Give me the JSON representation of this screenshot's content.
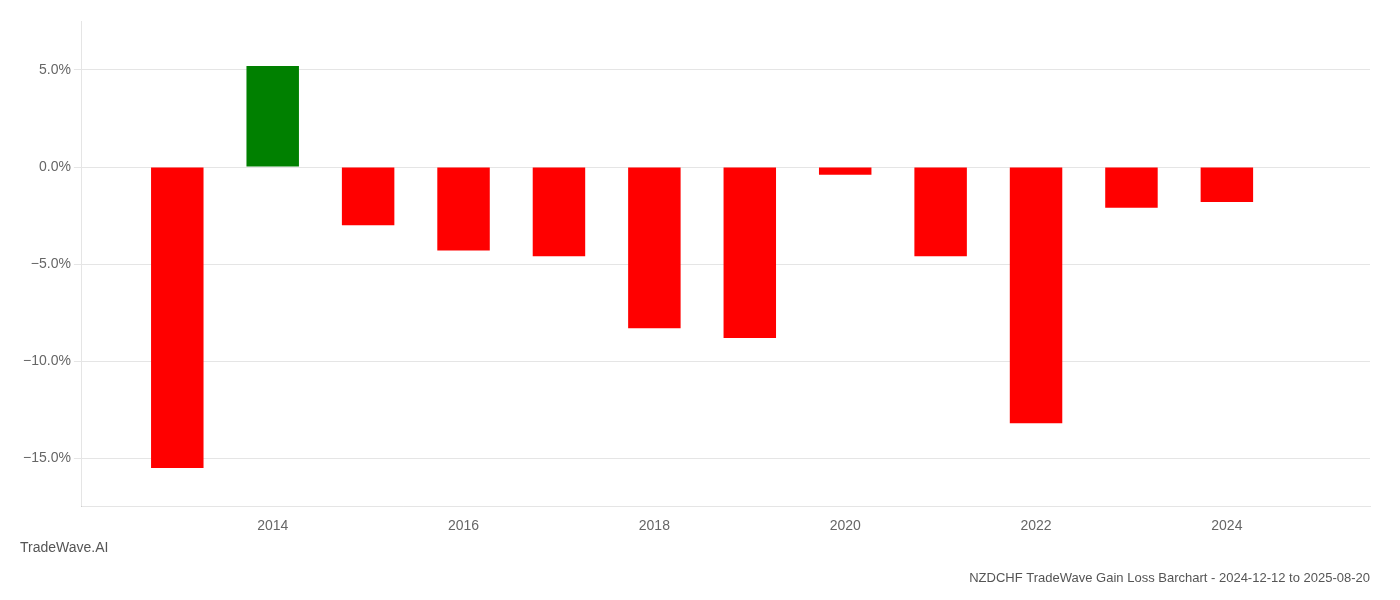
{
  "chart_data": {
    "type": "bar",
    "title": "NZDCHF TradeWave Gain Loss Barchart - 2024-12-12 to 2025-08-20",
    "annotations": [
      "TradeWave.AI"
    ],
    "x": [
      2013,
      2014,
      2015,
      2016,
      2017,
      2018,
      2019,
      2020,
      2021,
      2022,
      2023,
      2024
    ],
    "values": [
      -15.5,
      5.2,
      -3.0,
      -4.3,
      -4.6,
      -8.3,
      -8.8,
      -0.4,
      -4.6,
      -13.2,
      -2.1,
      -1.8
    ],
    "colors": [
      "#ff0000",
      "#008000",
      "#ff0000",
      "#ff0000",
      "#ff0000",
      "#ff0000",
      "#ff0000",
      "#ff0000",
      "#ff0000",
      "#ff0000",
      "#ff0000",
      "#ff0000"
    ],
    "xlim": [
      2012.0,
      2025.5
    ],
    "xticks": [
      2014,
      2016,
      2018,
      2020,
      2022,
      2024
    ],
    "ylim": [
      -17.5,
      7.5
    ],
    "yticks": [
      {
        "value": -15.0,
        "label": "−15.0%"
      },
      {
        "value": -10.0,
        "label": "−10.0%"
      },
      {
        "value": -5.0,
        "label": "−5.0%"
      },
      {
        "value": 0.0,
        "label": "0.0%"
      },
      {
        "value": 5.0,
        "label": "5.0%"
      }
    ],
    "grid": "y"
  }
}
